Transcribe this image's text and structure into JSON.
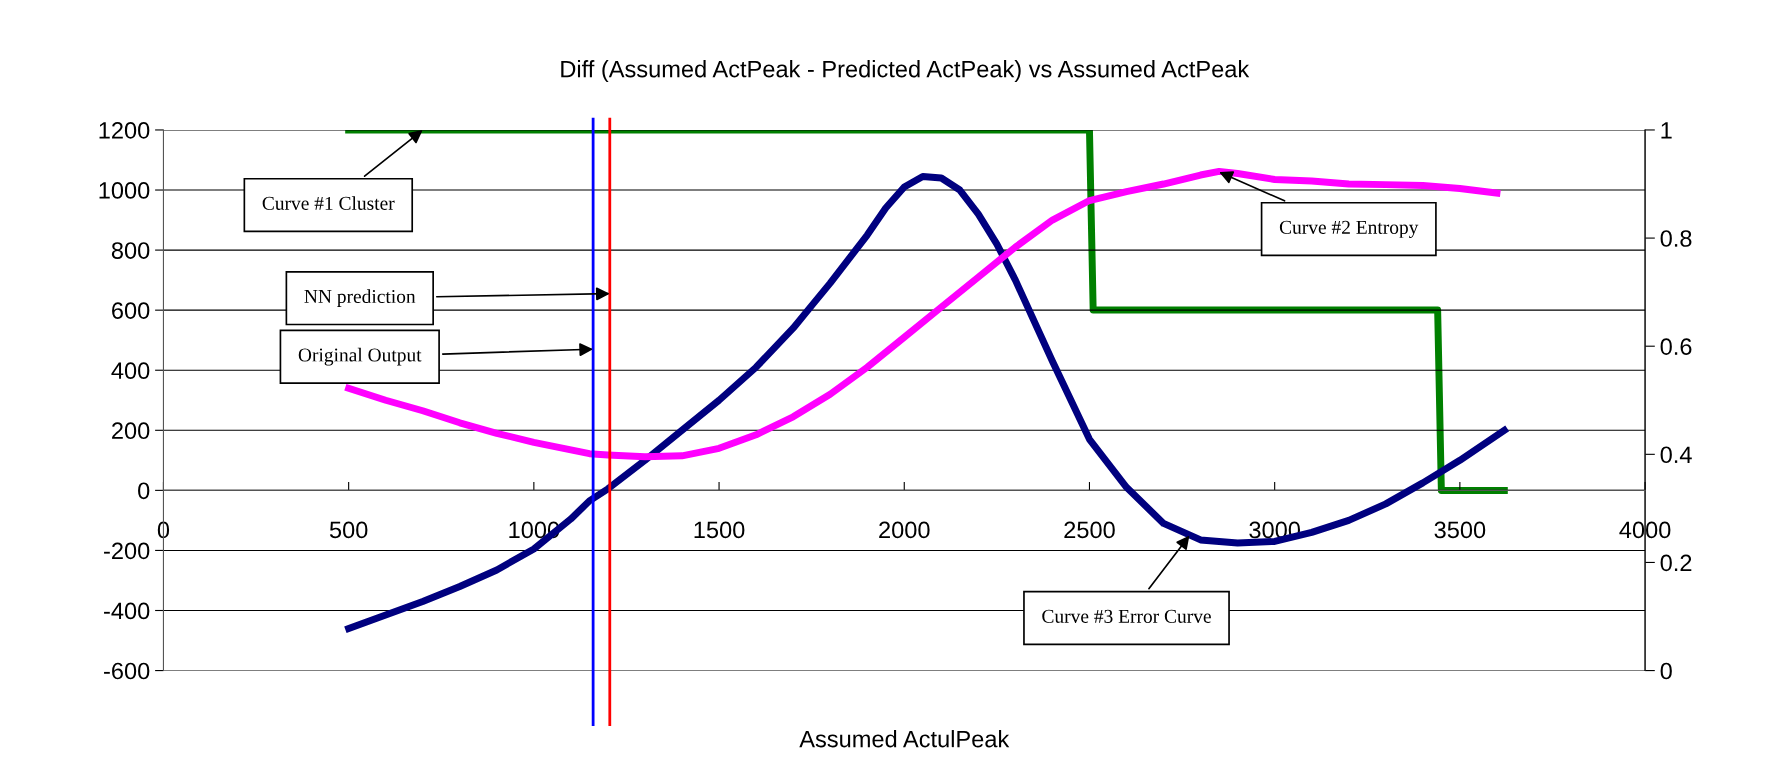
{
  "chart_data": {
    "type": "line",
    "title": "Diff (Assumed ActPeak - Predicted ActPeak) vs Assumed ActPeak",
    "xlabel": "Assumed ActulPeak",
    "xlim": [
      0,
      4000
    ],
    "xticks": [
      0,
      500,
      1000,
      1500,
      2000,
      2500,
      3000,
      3500,
      4000
    ],
    "ylim": [
      -600,
      1200
    ],
    "yticks": [
      -600,
      -400,
      -200,
      0,
      200,
      400,
      600,
      800,
      1000,
      1200
    ],
    "y2lim": [
      0,
      1
    ],
    "y2ticks": [
      0,
      0.2,
      0.4,
      0.6,
      0.8,
      1
    ],
    "grid": "y",
    "marker": "none",
    "line_style": "solid",
    "series": [
      {
        "color": "#00007f",
        "x": [
          500,
          600,
          700,
          800,
          900,
          1000,
          1100,
          1150,
          1200,
          1300,
          1400,
          1500,
          1600,
          1700,
          1750,
          1800,
          1900,
          1950,
          2000,
          2050,
          2100,
          2150,
          2200,
          2250,
          2300,
          2400,
          2500,
          2600,
          2700,
          2800,
          2900,
          3000,
          3100,
          3200,
          3300,
          3400,
          3500,
          3620
        ],
        "values": [
          -460,
          -415,
          -370,
          -320,
          -265,
          -195,
          -95,
          -35,
          5,
          100,
          200,
          300,
          410,
          540,
          615,
          690,
          850,
          940,
          1010,
          1045,
          1040,
          1000,
          920,
          820,
          700,
          430,
          170,
          10,
          -110,
          -165,
          -175,
          -170,
          -140,
          -100,
          -45,
          25,
          100,
          200
        ]
      },
      {
        "color": "#ff00ff",
        "x": [
          500,
          600,
          700,
          800,
          900,
          1000,
          1100,
          1150,
          1200,
          1300,
          1400,
          1500,
          1600,
          1700,
          1800,
          1900,
          2000,
          2100,
          2200,
          2300,
          2400,
          2500,
          2600,
          2700,
          2800,
          2850,
          2900,
          3000,
          3100,
          3200,
          3300,
          3400,
          3500,
          3600
        ],
        "values": [
          340,
          300,
          265,
          225,
          190,
          160,
          135,
          122,
          118,
          112,
          115,
          140,
          185,
          245,
          320,
          410,
          510,
          610,
          710,
          810,
          900,
          965,
          995,
          1020,
          1050,
          1062,
          1055,
          1035,
          1030,
          1020,
          1018,
          1015,
          1005,
          990
        ]
      },
      {
        "color": "#008000",
        "axis": "y2",
        "x": [
          500,
          2500,
          2510,
          3440,
          3450,
          3620
        ],
        "values": [
          1,
          1,
          0.667,
          0.667,
          0.333,
          0.333
        ]
      }
    ],
    "ref_lines": [
      {
        "axis": "x",
        "value": 1160,
        "color": "#0000ff"
      },
      {
        "axis": "x",
        "value": 1205,
        "color": "#ff0000"
      }
    ],
    "annotations": [
      {
        "text": "Curve #1 Cluster",
        "x": 700,
        "y": 1200
      },
      {
        "text": "NN prediction",
        "x": 1205,
        "y": 655
      },
      {
        "text": "Original Output",
        "x": 1160,
        "y": 470
      },
      {
        "text": "Curve #2 Entropy",
        "x": 2850,
        "y": 1060
      },
      {
        "text": "Curve #3 Error Curve",
        "x": 2770,
        "y": -150
      }
    ]
  }
}
